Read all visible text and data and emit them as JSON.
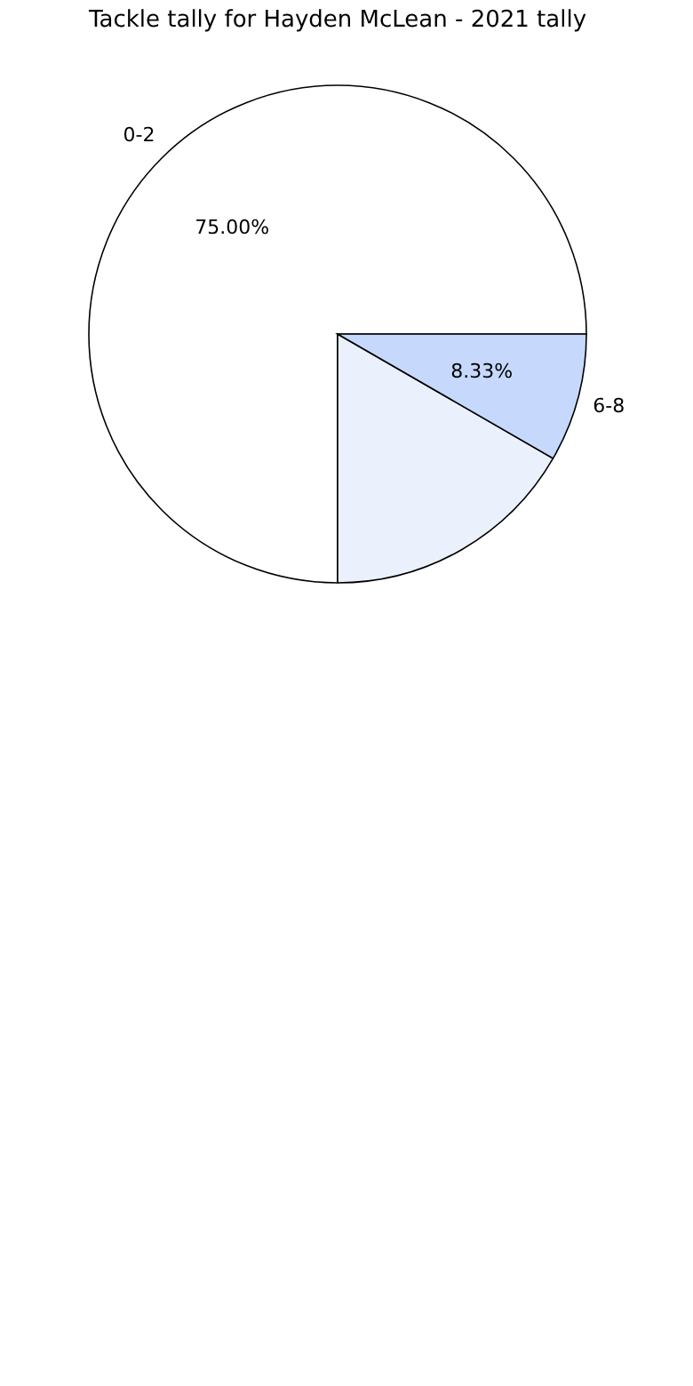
{
  "chart_data": {
    "type": "pie",
    "title": "Tackle tally for Hayden McLean - 2021 tally",
    "categories": [
      "0-2",
      null,
      "6-8"
    ],
    "values": [
      75.0,
      16.67,
      8.33
    ],
    "colors": [
      "#ffffff",
      "#eaf1fd",
      "#c6d9fd"
    ],
    "value_labels": [
      "75.00%",
      null,
      "8.33%"
    ],
    "legend": false
  }
}
